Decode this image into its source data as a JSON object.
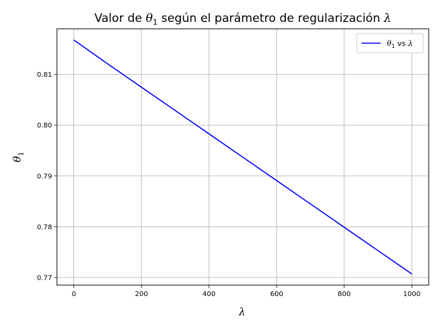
{
  "chart_data": {
    "type": "line",
    "title": {
      "prefix": "Valor de ",
      "symbol": "θ",
      "subscript": "1",
      "middle": " según el parámetro de regularización ",
      "suffix_symbol": "λ"
    },
    "xlabel": "λ",
    "ylabel": {
      "symbol": "θ",
      "subscript": "1"
    },
    "xlim": [
      -50,
      1050
    ],
    "ylim": [
      0.7685,
      0.819
    ],
    "xticks": [
      0,
      200,
      400,
      600,
      800,
      1000
    ],
    "xtick_labels": [
      "0",
      "200",
      "400",
      "600",
      "800",
      "1000"
    ],
    "yticks": [
      0.77,
      0.78,
      0.79,
      0.8,
      0.81
    ],
    "ytick_labels": [
      "0.77",
      "0.78",
      "0.79",
      "0.80",
      "0.81"
    ],
    "grid": true,
    "legend_position": "top-right",
    "series": [
      {
        "name": {
          "symbol": "θ",
          "subscript": "1",
          "text": " vs ",
          "symbol2": "λ"
        },
        "color": "#0000ff",
        "x": [
          0,
          100,
          200,
          300,
          400,
          500,
          600,
          700,
          800,
          900,
          1000
        ],
        "y": [
          0.8168,
          0.8121,
          0.8075,
          0.8029,
          0.7983,
          0.7937,
          0.7891,
          0.7845,
          0.7799,
          0.7753,
          0.7707
        ]
      }
    ]
  }
}
